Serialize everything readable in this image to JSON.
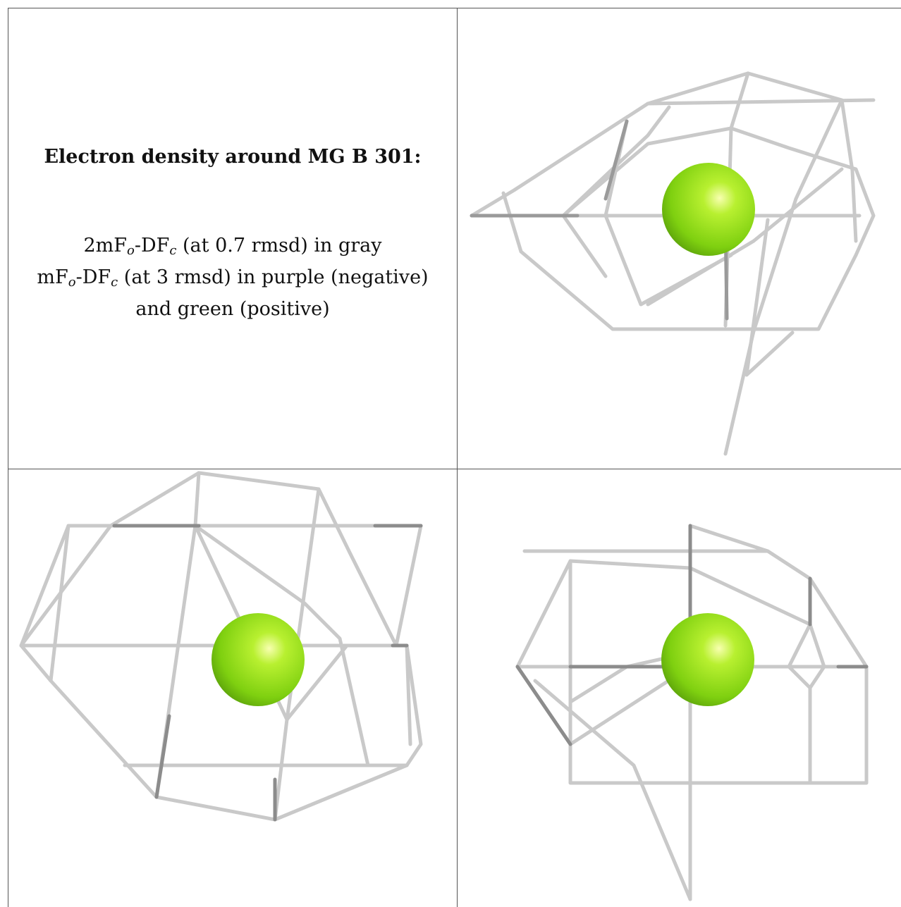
{
  "legend": {
    "title": "Electron density around MG B 301:",
    "line1_prefix": "2mF",
    "line1_sub1": "o",
    "line1_mid": "-DF",
    "line1_sub2": "c",
    "line1_suffix": " (at 0.7 rmsd) in gray",
    "line2_prefix": "mF",
    "line2_sub1": "o",
    "line2_mid": "-DF",
    "line2_sub2": "c",
    "line2_suffix": " (at 3 rmsd) in purple (negative)",
    "line3": "and green (positive)"
  },
  "colors": {
    "mesh": "#c8c8c8",
    "mesh_dark": "#8c8c8c",
    "ion": "#8fe01a",
    "frame": "#555555"
  },
  "panels": [
    "view-1",
    "view-2",
    "view-3"
  ]
}
